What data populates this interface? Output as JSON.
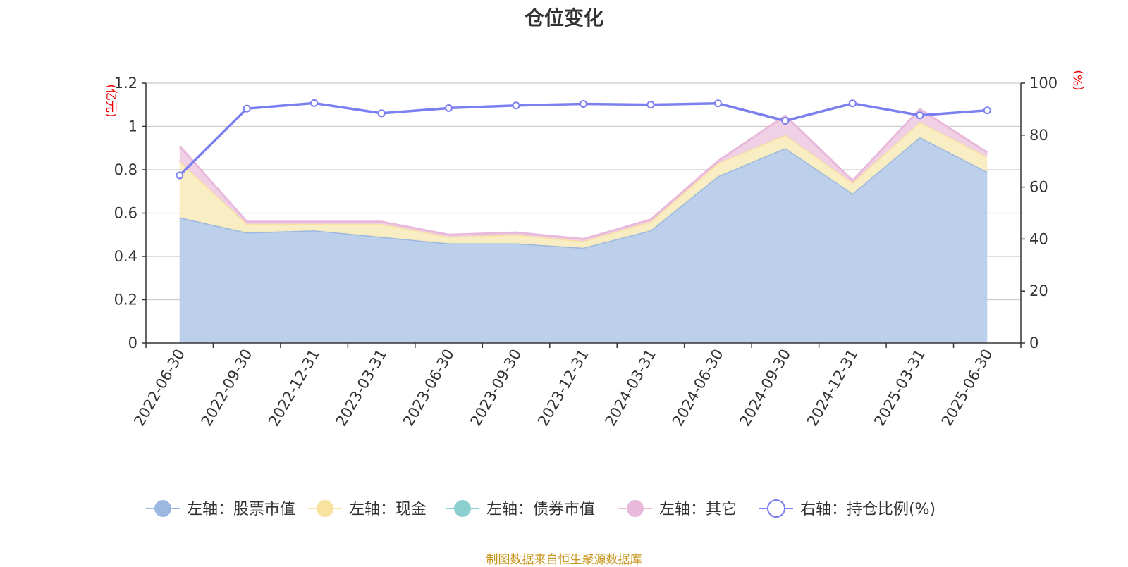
{
  "title": "仓位变化",
  "source_note": "制图数据来自恒生聚源数据库",
  "chart_data": {
    "type": "area",
    "title": "仓位变化",
    "categories": [
      "2022-06-30",
      "2022-09-30",
      "2022-12-31",
      "2023-03-31",
      "2023-06-30",
      "2023-09-30",
      "2023-12-31",
      "2024-03-31",
      "2024-06-30",
      "2024-09-30",
      "2024-12-31",
      "2025-03-31",
      "2025-06-30"
    ],
    "left_axis": {
      "unit": "(亿元)",
      "ylim": [
        0,
        1.2
      ],
      "ticks": [
        "0",
        "0.2",
        "0.4",
        "0.6",
        "0.8",
        "1",
        "1.2"
      ],
      "tick_values": [
        0,
        0.2,
        0.4,
        0.6,
        0.8,
        1.0,
        1.2
      ]
    },
    "right_axis": {
      "unit": "(%)",
      "ylim": [
        0,
        100
      ],
      "ticks": [
        "0",
        "20",
        "40",
        "60",
        "80",
        "100"
      ],
      "tick_values": [
        0,
        20,
        40,
        60,
        80,
        100
      ]
    },
    "series": [
      {
        "name": "左轴：股票市值",
        "axis": "left",
        "kind": "stacked-area",
        "color": "#9cb8e0",
        "fill": "#b8cdea",
        "values": [
          0.58,
          0.51,
          0.52,
          0.49,
          0.46,
          0.46,
          0.44,
          0.52,
          0.77,
          0.9,
          0.69,
          0.95,
          0.79
        ]
      },
      {
        "name": "左轴：现金",
        "axis": "left",
        "kind": "stacked-area",
        "color": "#f7e2a0",
        "fill": "#f8ecc0",
        "values": [
          0.26,
          0.04,
          0.03,
          0.06,
          0.03,
          0.04,
          0.03,
          0.04,
          0.06,
          0.06,
          0.05,
          0.07,
          0.07
        ]
      },
      {
        "name": "左轴：债券市值",
        "axis": "left",
        "kind": "stacked-area",
        "color": "#8ccfd0",
        "fill": "#a8dcdc",
        "values": [
          0,
          0,
          0,
          0,
          0,
          0,
          0,
          0,
          0,
          0,
          0,
          0,
          0
        ]
      },
      {
        "name": "左轴：其它",
        "axis": "left",
        "kind": "stacked-area",
        "color": "#e9b9db",
        "fill": "#eecde4",
        "values": [
          0.07,
          0.01,
          0.01,
          0.01,
          0.01,
          0.01,
          0.01,
          0.01,
          0.01,
          0.09,
          0.01,
          0.06,
          0.02
        ]
      },
      {
        "name": "右轴：持仓比例(%)",
        "axis": "right",
        "kind": "line",
        "color": "#7b7ff0",
        "values": [
          64.5,
          90.2,
          92.3,
          88.4,
          90.4,
          91.4,
          92.0,
          91.7,
          92.2,
          85.5,
          92.2,
          87.6,
          89.5
        ]
      }
    ],
    "grid": true,
    "legend_position": "bottom"
  }
}
